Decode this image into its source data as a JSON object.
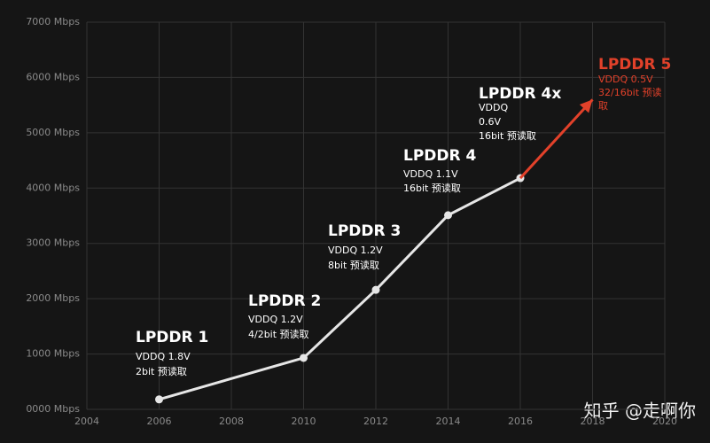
{
  "chart_data": {
    "type": "line",
    "xlim": [
      2004,
      2020
    ],
    "xticks": [
      2004,
      2006,
      2008,
      2010,
      2012,
      2014,
      2016,
      2018,
      2020
    ],
    "ylim": [
      0,
      7000
    ],
    "yticks": [
      {
        "value": 0,
        "label": "0000 Mbps"
      },
      {
        "value": 1000,
        "label": "1000 Mbps"
      },
      {
        "value": 2000,
        "label": "2000 Mbps"
      },
      {
        "value": 3000,
        "label": "3000 Mbps"
      },
      {
        "value": 4000,
        "label": "4000 Mbps"
      },
      {
        "value": 5000,
        "label": "5000 Mbps"
      },
      {
        "value": 6000,
        "label": "6000 Mbps"
      },
      {
        "value": 7000,
        "label": "7000 Mbps"
      }
    ],
    "grid": true,
    "series": [
      {
        "color": "#e6e6e6",
        "x": [
          2006,
          2010,
          2012,
          2014,
          2016
        ],
        "values": [
          180,
          930,
          2160,
          3510,
          4180
        ],
        "markers": true
      },
      {
        "color": "#e2412a",
        "x": [
          2016,
          2018
        ],
        "values": [
          4180,
          5600
        ],
        "arrow": true
      }
    ],
    "annotations": [
      {
        "title": "LPDDR 1",
        "lines": [
          "VDDQ 1.8V",
          "2bit 预读取"
        ],
        "color": "#ffffff"
      },
      {
        "title": "LPDDR 2",
        "lines": [
          "VDDQ 1.2V",
          "4/2bit 预读取"
        ],
        "color": "#ffffff"
      },
      {
        "title": "LPDDR 3",
        "lines": [
          "VDDQ 1.2V",
          "8bit 预读取"
        ],
        "color": "#ffffff"
      },
      {
        "title": "LPDDR 4",
        "lines": [
          "VDDQ 1.1V",
          "16bit 预读取"
        ],
        "color": "#ffffff"
      },
      {
        "title": "LPDDR 4x",
        "lines": [
          "VDDQ",
          "0.6V",
          "16bit 预读取"
        ],
        "color": "#ffffff"
      },
      {
        "title": "LPDDR 5",
        "lines": [
          "VDDQ 0.5V",
          "32/16bit 预读",
          "取"
        ],
        "color": "#e2412a"
      }
    ]
  },
  "watermark": "知乎 @走啊你"
}
